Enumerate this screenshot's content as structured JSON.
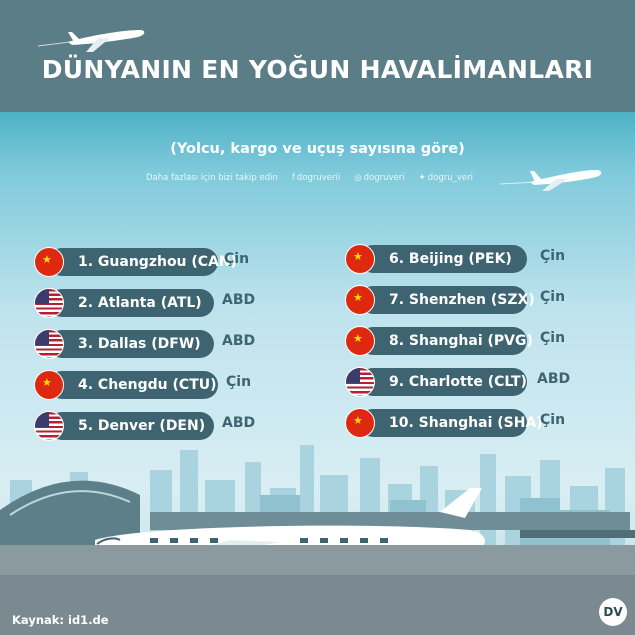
{
  "header": {
    "title": "DÜNYANIN EN YOĞUN HAVALİMANLARI"
  },
  "subtitle": "(Yolcu, kargo ve uçuş sayısına göre)",
  "follow": {
    "text": "Daha fazlası için bizi takip edin",
    "facebook": "dogruverii",
    "instagram": "dogruveri",
    "twitter": "dogru_veri"
  },
  "airports": [
    {
      "rank_name": "1. Guangzhou (CAN)",
      "country": "Çin",
      "flag": "cn-flag-icon"
    },
    {
      "rank_name": "2. Atlanta (ATL)",
      "country": "ABD",
      "flag": "us-flag-icon"
    },
    {
      "rank_name": "3. Dallas (DFW)",
      "country": "ABD",
      "flag": "us-flag-icon"
    },
    {
      "rank_name": "4. Chengdu (CTU)",
      "country": "Çin",
      "flag": "cn-flag-icon"
    },
    {
      "rank_name": "5. Denver (DEN)",
      "country": "ABD",
      "flag": "us-flag-icon"
    },
    {
      "rank_name": "6. Beijing (PEK)",
      "country": "Çin",
      "flag": "cn-flag-icon"
    },
    {
      "rank_name": "7. Shenzhen (SZX)",
      "country": "Çin",
      "flag": "cn-flag-icon"
    },
    {
      "rank_name": "8. Shanghai (PVG)",
      "country": "Çin",
      "flag": "cn-flag-icon"
    },
    {
      "rank_name": "9.  Charlotte (CLT)",
      "country": "ABD",
      "flag": "us-flag-icon"
    },
    {
      "rank_name": "10. Shanghai (SHA)",
      "country": "Çin",
      "flag": "cn-flag-icon"
    }
  ],
  "footer": {
    "source": "Kaynak: id1.de",
    "logo": "DV"
  },
  "colors": {
    "header_bg": "#5b7d87",
    "pill_bg": "#3d6470",
    "sky_top": "#4fb1c6"
  }
}
